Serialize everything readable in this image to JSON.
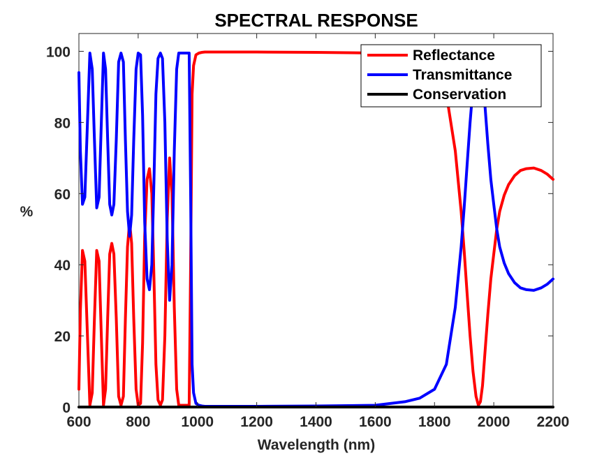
{
  "chart_data": {
    "type": "line",
    "title": "SPECTRAL RESPONSE",
    "xlabel": "Wavelength (nm)",
    "ylabel": "%",
    "xlim": [
      600,
      2200
    ],
    "ylim": [
      0,
      105
    ],
    "xticks": [
      600,
      800,
      1000,
      1200,
      1400,
      1600,
      1800,
      2000,
      2200
    ],
    "yticks": [
      0,
      20,
      40,
      60,
      80,
      100
    ],
    "legend_position": "top-right",
    "series": [
      {
        "name": "Reflectance",
        "color": "#ff0000",
        "x": [
          600,
          605,
          612,
          620,
          628,
          637,
          645,
          652,
          660,
          668,
          675,
          683,
          690,
          697,
          704,
          711,
          718,
          726,
          734,
          742,
          750,
          757,
          764,
          771,
          778,
          785,
          793,
          800,
          808,
          815,
          822,
          830,
          838,
          846,
          853,
          860,
          867,
          875,
          882,
          890,
          898,
          906,
          914,
          922,
          930,
          937,
          944,
          952,
          960,
          967,
          972,
          977,
          982,
          987,
          995,
          1005,
          1015,
          1025,
          1040,
          1060,
          1100,
          1200,
          1400,
          1600,
          1700,
          1750,
          1800,
          1840,
          1870,
          1890,
          1900,
          1910,
          1920,
          1930,
          1940,
          1948,
          1955,
          1962,
          1970,
          1980,
          1990,
          2000,
          2010,
          2020,
          2035,
          2050,
          2070,
          2090,
          2110,
          2135,
          2160,
          2180,
          2200
        ],
        "values": [
          5,
          27,
          44,
          41,
          22,
          0.5,
          4,
          24,
          44,
          41,
          22,
          0.5,
          5,
          25,
          43,
          46,
          43,
          25,
          3,
          0.5,
          3,
          25,
          45,
          52,
          46,
          25,
          5,
          0.5,
          1,
          18,
          48,
          64,
          67,
          60,
          37,
          12,
          2,
          0.5,
          2,
          20,
          53,
          70,
          60,
          28,
          5,
          0.5,
          0.5,
          0.5,
          0.5,
          0.5,
          0.5,
          40,
          88,
          96,
          99,
          99.5,
          99.7,
          99.8,
          99.8,
          99.8,
          99.8,
          99.8,
          99.7,
          99.5,
          98.5,
          97.5,
          95,
          88,
          72,
          55,
          44,
          32,
          20,
          10,
          3,
          0.5,
          1.5,
          6,
          15,
          26,
          36,
          43,
          50,
          55,
          59.5,
          62.5,
          65,
          66.5,
          67,
          67.2,
          66.5,
          65.5,
          64
        ]
      },
      {
        "name": "Transmittance",
        "color": "#0000ff",
        "x": [
          600,
          605,
          612,
          620,
          628,
          637,
          645,
          652,
          660,
          668,
          675,
          683,
          690,
          697,
          704,
          711,
          718,
          726,
          734,
          742,
          750,
          757,
          764,
          771,
          778,
          785,
          793,
          800,
          808,
          815,
          822,
          830,
          838,
          846,
          853,
          860,
          867,
          875,
          882,
          890,
          898,
          906,
          914,
          922,
          930,
          937,
          944,
          952,
          960,
          967,
          972,
          977,
          982,
          987,
          995,
          1005,
          1015,
          1025,
          1040,
          1060,
          1100,
          1200,
          1400,
          1600,
          1700,
          1750,
          1800,
          1840,
          1870,
          1890,
          1900,
          1910,
          1920,
          1930,
          1940,
          1948,
          1955,
          1962,
          1970,
          1980,
          1990,
          2000,
          2010,
          2020,
          2035,
          2050,
          2070,
          2090,
          2110,
          2135,
          2160,
          2180,
          2200
        ],
        "values": [
          94,
          72,
          57,
          59,
          78,
          99.5,
          95,
          76,
          56,
          59,
          78,
          99.5,
          95,
          75,
          57,
          54,
          57,
          75,
          97,
          99.5,
          97,
          75,
          55,
          48,
          54,
          75,
          95,
          99.5,
          99,
          82,
          52,
          36,
          33,
          40,
          63,
          88,
          98,
          99.5,
          98,
          80,
          47,
          30,
          40,
          72,
          95,
          99.5,
          99.5,
          99.5,
          99.5,
          99.5,
          99.5,
          60,
          12,
          4,
          1,
          0.5,
          0.3,
          0.2,
          0.2,
          0.2,
          0.2,
          0.2,
          0.3,
          0.5,
          1.5,
          2.5,
          5,
          12,
          28,
          45,
          56,
          68,
          80,
          90,
          97,
          99.5,
          98.5,
          94,
          85,
          74,
          64,
          57,
          50,
          45,
          40.5,
          37.5,
          35,
          33.5,
          33,
          32.8,
          33.5,
          34.5,
          36
        ]
      },
      {
        "name": "Conservation",
        "color": "#000000",
        "x": [
          600,
          2200
        ],
        "values": [
          0,
          0
        ]
      }
    ]
  }
}
